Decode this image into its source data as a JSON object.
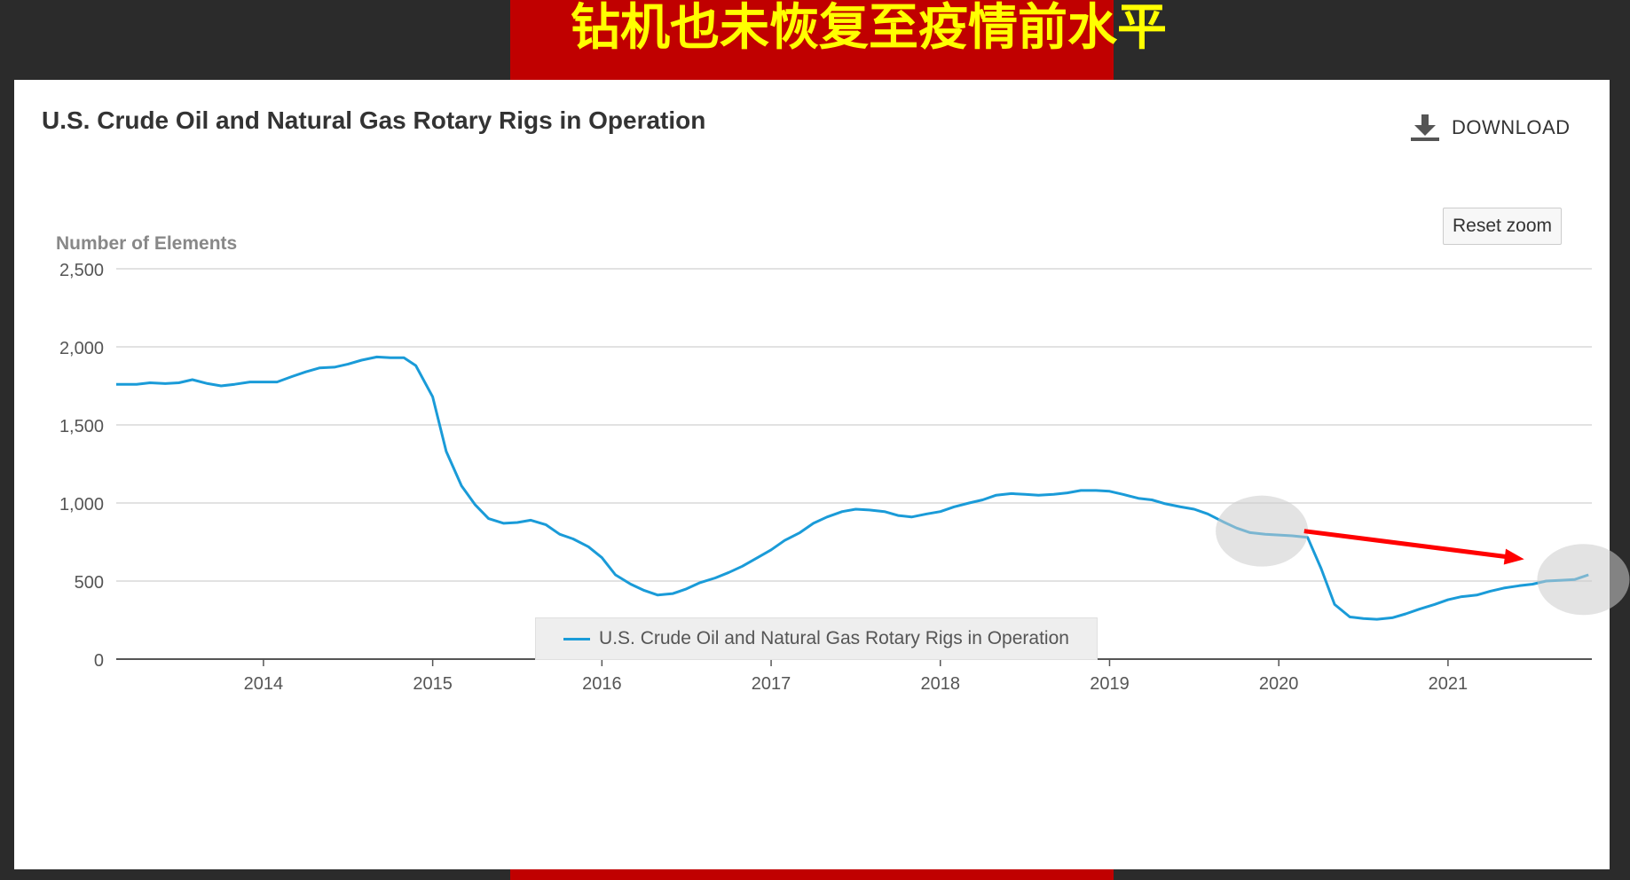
{
  "headline": "钻机也未恢复至疫情前水平",
  "download_label": "DOWNLOAD",
  "reset_zoom_label": "Reset zoom",
  "colors": {
    "series": "#1a9bd8",
    "arrow": "#ff0000",
    "banner": "#c00000",
    "headline_text": "#ffff00",
    "grid": "#d8d8d8"
  },
  "icons": [
    "download-icon",
    "arrow-annotation",
    "highlight-circle"
  ],
  "chart_data": {
    "type": "line",
    "title": "U.S. Crude Oil and Natural Gas Rotary Rigs in Operation",
    "ylabel": "Number of Elements",
    "xlabel": "",
    "xlim": [
      2013.13,
      2021.85
    ],
    "ylim": [
      0,
      2500
    ],
    "x_ticks": [
      2014,
      2015,
      2016,
      2017,
      2018,
      2019,
      2020,
      2021
    ],
    "x_tick_labels": [
      "2014",
      "2015",
      "2016",
      "2017",
      "2018",
      "2019",
      "2020",
      "2021"
    ],
    "y_ticks": [
      0,
      500,
      1000,
      1500,
      2000,
      2500
    ],
    "y_tick_labels": [
      "0",
      "500",
      "1,000",
      "1,500",
      "2,000",
      "2,500"
    ],
    "grid": true,
    "legend": "bottom-center",
    "series": [
      {
        "name": "U.S. Crude Oil and Natural Gas Rotary Rigs in Operation",
        "x": [
          2013.13,
          2013.25,
          2013.33,
          2013.42,
          2013.5,
          2013.58,
          2013.67,
          2013.75,
          2013.83,
          2013.92,
          2014.0,
          2014.08,
          2014.17,
          2014.25,
          2014.33,
          2014.42,
          2014.5,
          2014.58,
          2014.67,
          2014.75,
          2014.83,
          2014.9,
          2015.0,
          2015.08,
          2015.17,
          2015.25,
          2015.33,
          2015.42,
          2015.5,
          2015.58,
          2015.67,
          2015.75,
          2015.83,
          2015.92,
          2016.0,
          2016.08,
          2016.17,
          2016.25,
          2016.33,
          2016.42,
          2016.5,
          2016.58,
          2016.67,
          2016.75,
          2016.83,
          2016.92,
          2017.0,
          2017.08,
          2017.17,
          2017.25,
          2017.33,
          2017.42,
          2017.5,
          2017.58,
          2017.67,
          2017.75,
          2017.83,
          2017.92,
          2018.0,
          2018.08,
          2018.17,
          2018.25,
          2018.33,
          2018.42,
          2018.5,
          2018.58,
          2018.67,
          2018.75,
          2018.83,
          2018.92,
          2019.0,
          2019.08,
          2019.17,
          2019.25,
          2019.33,
          2019.42,
          2019.5,
          2019.58,
          2019.67,
          2019.75,
          2019.83,
          2019.92,
          2020.0,
          2020.08,
          2020.17,
          2020.25,
          2020.33,
          2020.42,
          2020.5,
          2020.58,
          2020.67,
          2020.75,
          2020.83,
          2020.92,
          2021.0,
          2021.08,
          2021.17,
          2021.25,
          2021.33,
          2021.42,
          2021.5,
          2021.58,
          2021.67,
          2021.75,
          2021.83
        ],
        "values": [
          1760,
          1760,
          1770,
          1765,
          1770,
          1790,
          1765,
          1750,
          1760,
          1775,
          1775,
          1775,
          1810,
          1840,
          1865,
          1870,
          1890,
          1915,
          1935,
          1930,
          1930,
          1880,
          1680,
          1330,
          1110,
          990,
          900,
          870,
          875,
          890,
          860,
          800,
          770,
          720,
          650,
          540,
          480,
          440,
          410,
          420,
          450,
          490,
          520,
          555,
          595,
          650,
          700,
          760,
          810,
          870,
          910,
          945,
          960,
          955,
          945,
          920,
          910,
          930,
          945,
          975,
          1000,
          1020,
          1050,
          1060,
          1055,
          1050,
          1055,
          1065,
          1080,
          1080,
          1075,
          1055,
          1030,
          1020,
          995,
          975,
          960,
          930,
          880,
          840,
          810,
          800,
          795,
          790,
          780,
          580,
          350,
          270,
          260,
          255,
          265,
          290,
          320,
          350,
          380,
          400,
          410,
          435,
          455,
          470,
          480,
          500,
          505,
          510,
          540
        ]
      }
    ]
  }
}
